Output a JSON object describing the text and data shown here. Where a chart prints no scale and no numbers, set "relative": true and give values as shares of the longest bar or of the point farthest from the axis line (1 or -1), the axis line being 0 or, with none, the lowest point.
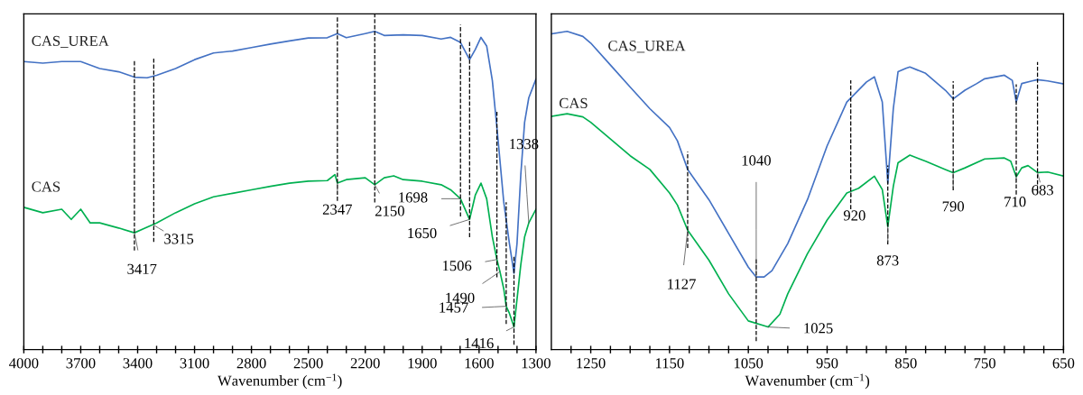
{
  "chart_data": [
    {
      "type": "line",
      "relative": true,
      "xlabel": "Wavenumber (cm$^{−1}$)",
      "xlim": [
        4000,
        1300
      ],
      "xticks": [
        4000,
        {
          "value": 3900,
          "label": null
        },
        {
          "value": 3800,
          "label": null
        },
        3700,
        {
          "value": 3600,
          "label": null
        },
        {
          "value": 3500,
          "label": null
        },
        3400,
        {
          "value": 3300,
          "label": null
        },
        {
          "value": 3200,
          "label": null
        },
        3100,
        {
          "value": 3000,
          "label": null
        },
        {
          "value": 2900,
          "label": null
        },
        2800,
        {
          "value": 2700,
          "label": null
        },
        {
          "value": 2600,
          "label": null
        },
        2500,
        {
          "value": 2400,
          "label": null
        },
        {
          "value": 2300,
          "label": null
        },
        2200,
        {
          "value": 2100,
          "label": null
        },
        {
          "value": 2000,
          "label": null
        },
        1900,
        {
          "value": 1800,
          "label": null
        },
        {
          "value": 1700,
          "label": null
        },
        1600,
        {
          "value": 1500,
          "label": null
        },
        {
          "value": 1400,
          "label": null
        },
        1300
      ],
      "tick_labels": "x",
      "legend": false,
      "grid": false,
      "marker": "none",
      "line_style": "solid",
      "series": [
        {
          "name": "CAS_UREA",
          "color": "#4472c4",
          "x": [
            4000,
            3900,
            3800,
            3700,
            3600,
            3500,
            3417,
            3350,
            3300,
            3200,
            3100,
            3000,
            2900,
            2800,
            2700,
            2600,
            2500,
            2400,
            2347,
            2300,
            2200,
            2150,
            2100,
            2000,
            1900,
            1800,
            1750,
            1698,
            1650,
            1620,
            1590,
            1560,
            1530,
            1500,
            1470,
            1440,
            1416,
            1400,
            1380,
            1360,
            1338,
            1300
          ],
          "values": [
            0.905,
            0.9,
            0.905,
            0.905,
            0.883,
            0.873,
            0.856,
            0.854,
            0.862,
            0.883,
            0.911,
            0.932,
            0.938,
            0.949,
            0.96,
            0.97,
            0.979,
            0.98,
            0.993,
            0.98,
            0.993,
            1.0,
            0.987,
            0.989,
            0.987,
            0.976,
            0.981,
            0.965,
            0.911,
            0.943,
            0.981,
            0.954,
            0.845,
            0.66,
            0.464,
            0.333,
            0.24,
            0.333,
            0.55,
            0.714,
            0.791,
            0.85
          ]
        },
        {
          "name": "CAS",
          "color": "#00b050",
          "x": [
            4000,
            3900,
            3800,
            3750,
            3700,
            3650,
            3600,
            3500,
            3417,
            3300,
            3200,
            3100,
            3000,
            2900,
            2800,
            2700,
            2600,
            2500,
            2400,
            2360,
            2347,
            2300,
            2200,
            2150,
            2100,
            2050,
            2000,
            1900,
            1800,
            1750,
            1698,
            1650,
            1620,
            1590,
            1560,
            1530,
            1506,
            1490,
            1470,
            1457,
            1440,
            1416,
            1400,
            1380,
            1360,
            1338,
            1300
          ],
          "values": [
            0.447,
            0.43,
            0.441,
            0.409,
            0.441,
            0.398,
            0.398,
            0.382,
            0.367,
            0.398,
            0.43,
            0.458,
            0.48,
            0.491,
            0.502,
            0.513,
            0.523,
            0.529,
            0.531,
            0.55,
            0.523,
            0.534,
            0.54,
            0.518,
            0.54,
            0.546,
            0.534,
            0.529,
            0.518,
            0.502,
            0.474,
            0.409,
            0.485,
            0.523,
            0.474,
            0.354,
            0.283,
            0.245,
            0.191,
            0.136,
            0.114,
            0.071,
            0.158,
            0.267,
            0.354,
            0.398,
            0.441
          ]
        }
      ],
      "ref_lines": [
        {
          "axis": "x",
          "value": 3417,
          "color": "#000000",
          "line_style": "dashed"
        },
        {
          "axis": "x",
          "value": 3315,
          "color": "#000000",
          "line_style": "dashed"
        },
        {
          "axis": "x",
          "value": 2347,
          "color": "#000000",
          "line_style": "dashed"
        },
        {
          "axis": "x",
          "value": 2150,
          "color": "#000000",
          "line_style": "dashed"
        },
        {
          "axis": "x",
          "value": 1698,
          "color": "#000000",
          "line_style": "dashed"
        },
        {
          "axis": "x",
          "value": 1650,
          "color": "#000000",
          "line_style": "dashed"
        },
        {
          "axis": "x",
          "value": 1506,
          "color": "#000000",
          "line_style": "dashed"
        },
        {
          "axis": "x",
          "value": 1457,
          "color": "#000000",
          "line_style": "dashed"
        },
        {
          "axis": "x",
          "value": 1416,
          "color": "#000000",
          "line_style": "dashed"
        }
      ],
      "annotations": [
        {
          "text": "3417",
          "x": 3417,
          "y": 0.367
        },
        {
          "text": "3315",
          "x": 3315,
          "y": 0.391
        },
        {
          "text": "2347",
          "x": 2347,
          "y": 0.523
        },
        {
          "text": "2150",
          "x": 2150,
          "y": 0.518
        },
        {
          "text": "1698",
          "x": 1698,
          "y": 0.474
        },
        {
          "text": "1650",
          "x": 1650,
          "y": 0.409
        },
        {
          "text": "1506",
          "x": 1506,
          "y": 0.283
        },
        {
          "text": "1490",
          "x": 1490,
          "y": 0.245
        },
        {
          "text": "1457",
          "x": 1457,
          "y": 0.136
        },
        {
          "text": "1416",
          "x": 1416,
          "y": 0.071
        },
        {
          "text": "1338",
          "x": 1338,
          "y": 0.398
        }
      ]
    },
    {
      "type": "line",
      "relative": true,
      "xlabel": "Wavenumber (cm$^{−1}$)",
      "xlim": [
        1300,
        650
      ],
      "xticks": [
        {
          "value": 1275,
          "label": null
        },
        1250,
        {
          "value": 1225,
          "label": null
        },
        {
          "value": 1200,
          "label": null
        },
        {
          "value": 1175,
          "label": null
        },
        1150,
        {
          "value": 1125,
          "label": null
        },
        {
          "value": 1100,
          "label": null
        },
        {
          "value": 1075,
          "label": null
        },
        1050,
        {
          "value": 1025,
          "label": null
        },
        {
          "value": 1000,
          "label": null
        },
        {
          "value": 975,
          "label": null
        },
        950,
        {
          "value": 925,
          "label": null
        },
        {
          "value": 900,
          "label": null
        },
        {
          "value": 875,
          "label": null
        },
        850,
        {
          "value": 825,
          "label": null
        },
        {
          "value": 800,
          "label": null
        },
        {
          "value": 775,
          "label": null
        },
        750,
        {
          "value": 725,
          "label": null
        },
        {
          "value": 700,
          "label": null
        },
        {
          "value": 675,
          "label": null
        },
        650
      ],
      "tick_labels": "x",
      "legend": false,
      "grid": false,
      "marker": "none",
      "line_style": "solid",
      "series": [
        {
          "name": "CAS_UREA",
          "color": "#4472c4",
          "x": [
            1300,
            1280,
            1260,
            1250,
            1225,
            1200,
            1175,
            1150,
            1140,
            1127,
            1100,
            1075,
            1050,
            1040,
            1030,
            1020,
            1000,
            975,
            950,
            925,
            900,
            890,
            880,
            873,
            866,
            860,
            850,
            845,
            825,
            800,
            790,
            775,
            760,
            750,
            725,
            715,
            710,
            703,
            690,
            683,
            670,
            650
          ],
          "values": [
            0.992,
            1.0,
            0.984,
            0.963,
            0.894,
            0.825,
            0.757,
            0.698,
            0.656,
            0.566,
            0.471,
            0.365,
            0.259,
            0.228,
            0.228,
            0.248,
            0.333,
            0.471,
            0.64,
            0.778,
            0.841,
            0.857,
            0.778,
            0.523,
            0.757,
            0.873,
            0.884,
            0.888,
            0.868,
            0.815,
            0.788,
            0.815,
            0.836,
            0.851,
            0.862,
            0.846,
            0.778,
            0.836,
            0.844,
            0.848,
            0.844,
            0.835
          ]
        },
        {
          "name": "CAS",
          "color": "#00b050",
          "x": [
            1300,
            1280,
            1260,
            1250,
            1225,
            1200,
            1175,
            1150,
            1140,
            1127,
            1100,
            1075,
            1050,
            1025,
            1010,
            1000,
            975,
            950,
            925,
            910,
            890,
            880,
            873,
            866,
            860,
            845,
            825,
            800,
            790,
            775,
            750,
            725,
            717,
            710,
            703,
            695,
            683,
            670,
            650
          ],
          "values": [
            0.733,
            0.741,
            0.731,
            0.714,
            0.662,
            0.609,
            0.566,
            0.492,
            0.454,
            0.375,
            0.281,
            0.175,
            0.09,
            0.071,
            0.111,
            0.175,
            0.301,
            0.407,
            0.492,
            0.507,
            0.545,
            0.503,
            0.386,
            0.513,
            0.587,
            0.611,
            0.592,
            0.566,
            0.556,
            0.571,
            0.599,
            0.602,
            0.592,
            0.543,
            0.571,
            0.578,
            0.556,
            0.558,
            0.545
          ]
        }
      ],
      "ref_lines": [
        {
          "axis": "x",
          "value": 1127,
          "color": "#000000",
          "line_style": "dashed"
        },
        {
          "axis": "x",
          "value": 1040,
          "color": "#000000",
          "line_style": "dashed"
        },
        {
          "axis": "x",
          "value": 920,
          "color": "#000000",
          "line_style": "dashed"
        },
        {
          "axis": "x",
          "value": 873,
          "color": "#000000",
          "line_style": "dashed"
        },
        {
          "axis": "x",
          "value": 790,
          "color": "#000000",
          "line_style": "dashed"
        },
        {
          "axis": "x",
          "value": 710,
          "color": "#000000",
          "line_style": "dashed"
        },
        {
          "axis": "x",
          "value": 683,
          "color": "#000000",
          "line_style": "dashed"
        }
      ],
      "annotations": [
        {
          "text": "1127",
          "x": 1127,
          "y": 0.375
        },
        {
          "text": "1040",
          "x": 1040,
          "y": 0.228
        },
        {
          "text": "1025",
          "x": 1025,
          "y": 0.071
        },
        {
          "text": "920",
          "x": 920,
          "y": 0.496
        },
        {
          "text": "873",
          "x": 873,
          "y": 0.386
        },
        {
          "text": "790",
          "x": 790,
          "y": 0.556
        },
        {
          "text": "710",
          "x": 710,
          "y": 0.543
        },
        {
          "text": "683",
          "x": 683,
          "y": 0.556
        }
      ]
    }
  ]
}
